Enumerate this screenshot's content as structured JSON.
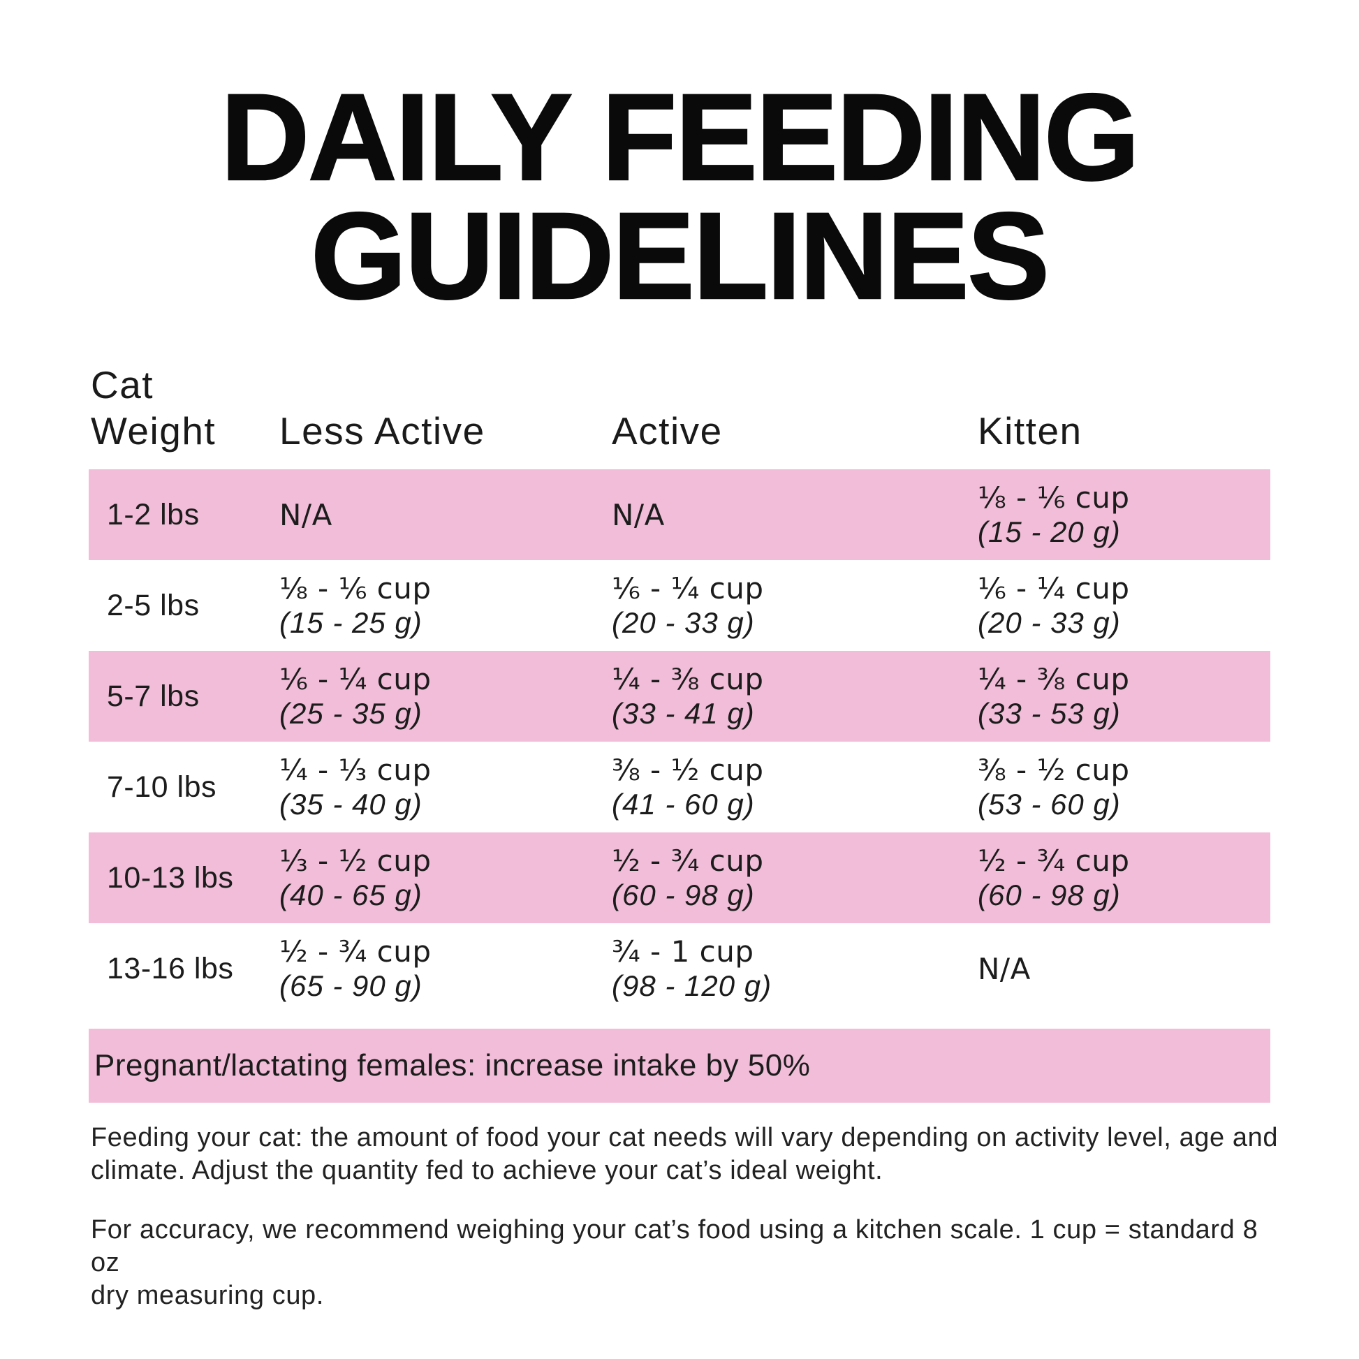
{
  "title": {
    "line1": "DAILY FEEDING",
    "line2": "GUIDELINES"
  },
  "colors": {
    "band_pink": "#F1BDD8",
    "text": "#1c1c1c",
    "title_black": "#0a0a0a"
  },
  "table": {
    "headers": {
      "weight": "Cat\nWeight",
      "less_active": "Less Active",
      "active": "Active",
      "kitten": "Kitten"
    },
    "rows": [
      {
        "weight": "1-2 lbs",
        "cells": [
          {
            "cups": "N/A",
            "grams": ""
          },
          {
            "cups": "N/A",
            "grams": ""
          },
          {
            "cups": "⅛ - ⅙ cup",
            "grams": "(15 - 20 g)"
          }
        ]
      },
      {
        "weight": "2-5 lbs",
        "cells": [
          {
            "cups": "⅛ - ⅙ cup",
            "grams": "(15 - 25 g)"
          },
          {
            "cups": "⅙ - ¼ cup",
            "grams": "(20 - 33 g)"
          },
          {
            "cups": "⅙ - ¼ cup",
            "grams": "(20 - 33 g)"
          }
        ]
      },
      {
        "weight": "5-7 lbs",
        "cells": [
          {
            "cups": "⅙ - ¼ cup",
            "grams": "(25 - 35 g)"
          },
          {
            "cups": "¼ - ⅜ cup",
            "grams": "(33 - 41 g)"
          },
          {
            "cups": "¼ - ⅜ cup",
            "grams": "(33 - 53 g)"
          }
        ]
      },
      {
        "weight": "7-10 lbs",
        "cells": [
          {
            "cups": "¼ - ⅓ cup",
            "grams": "(35 - 40 g)"
          },
          {
            "cups": "⅜ - ½ cup",
            "grams": "(41 - 60 g)"
          },
          {
            "cups": "⅜ - ½ cup",
            "grams": "(53 - 60 g)"
          }
        ]
      },
      {
        "weight": "10-13 lbs",
        "cells": [
          {
            "cups": "⅓ - ½ cup",
            "grams": "(40 - 65 g)"
          },
          {
            "cups": "½ - ¾ cup",
            "grams": "(60 - 98 g)"
          },
          {
            "cups": "½ - ¾ cup",
            "grams": "(60 - 98 g)"
          }
        ]
      },
      {
        "weight": "13-16 lbs",
        "cells": [
          {
            "cups": "½ - ¾ cup",
            "grams": "(65 - 90 g)"
          },
          {
            "cups": "¾ - 1 cup",
            "grams": "(98 - 120 g)"
          },
          {
            "cups": "N/A",
            "grams": ""
          }
        ]
      }
    ]
  },
  "pregnant_note": "Pregnant/lactating females: increase intake by 50%",
  "notes": {
    "feeding": "Feeding your cat: the amount of food your cat needs will vary depending on activity level, age and\nclimate. Adjust the quantity fed to achieve your cat’s ideal weight.",
    "accuracy": "For accuracy, we recommend weighing your cat’s food using a kitchen scale. 1 cup = standard 8 oz\ndry measuring cup."
  }
}
